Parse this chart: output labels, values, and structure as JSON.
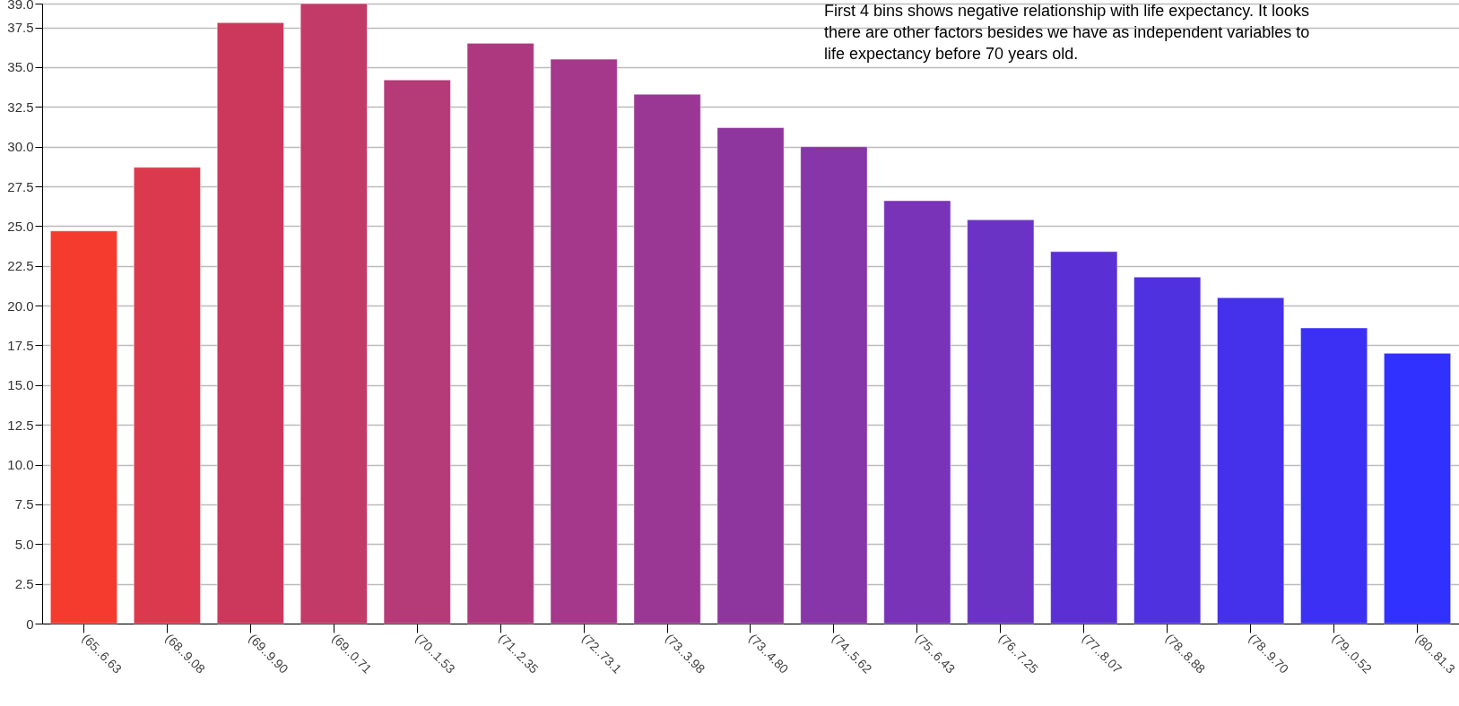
{
  "chart_data": {
    "type": "bar",
    "categories": [
      "(65..6.63",
      "(68..9.08",
      "(69..9.90",
      "(69..0.71",
      "(70..1.53",
      "(71..2.35",
      "(72..73.1",
      "(73..3.98",
      "(73..4.80",
      "(74..5.62",
      "(75..6.43",
      "(76..7.25",
      "(77..8.07",
      "(78..8.88",
      "(78..9.70",
      "(79..0.52",
      "(80..81.3"
    ],
    "values": [
      24.7,
      28.7,
      37.8,
      39.0,
      34.2,
      36.5,
      35.5,
      33.3,
      31.2,
      30.0,
      26.6,
      25.4,
      23.4,
      21.8,
      20.5,
      18.6,
      17.0
    ],
    "colors": [
      "#f53b2e",
      "#db3a4e",
      "#cc385c",
      "#c23a68",
      "#b53a78",
      "#ae3880",
      "#a5388b",
      "#9a3794",
      "#8f369e",
      "#8636a8",
      "#7833b8",
      "#6a33c6",
      "#5a30d4",
      "#4f31e0",
      "#4530ec",
      "#3b30f4",
      "#3030ff"
    ],
    "ylim": [
      0,
      39
    ],
    "yticks": [
      {
        "value": 0,
        "label": "0"
      },
      {
        "value": 2.5,
        "label": "2.5"
      },
      {
        "value": 5,
        "label": "5.0"
      },
      {
        "value": 7.5,
        "label": "7.5"
      },
      {
        "value": 10,
        "label": "10.0"
      },
      {
        "value": 12.5,
        "label": "12.5"
      },
      {
        "value": 15,
        "label": "15.0"
      },
      {
        "value": 17.5,
        "label": "17.5"
      },
      {
        "value": 20,
        "label": "20.0"
      },
      {
        "value": 22.5,
        "label": "22.5"
      },
      {
        "value": 25,
        "label": "25.0"
      },
      {
        "value": 27.5,
        "label": "27.5"
      },
      {
        "value": 30,
        "label": "30.0"
      },
      {
        "value": 32.5,
        "label": "32.5"
      },
      {
        "value": 35,
        "label": "35.0"
      },
      {
        "value": 37.5,
        "label": "37.5"
      },
      {
        "value": 39,
        "label": "39.0"
      }
    ],
    "grid": "y",
    "annotations": [
      "First 4 bins shows negative relationship with life expectancy. It looks there are other factors besides we have as independent variables to life expectancy before 70 years old."
    ]
  }
}
